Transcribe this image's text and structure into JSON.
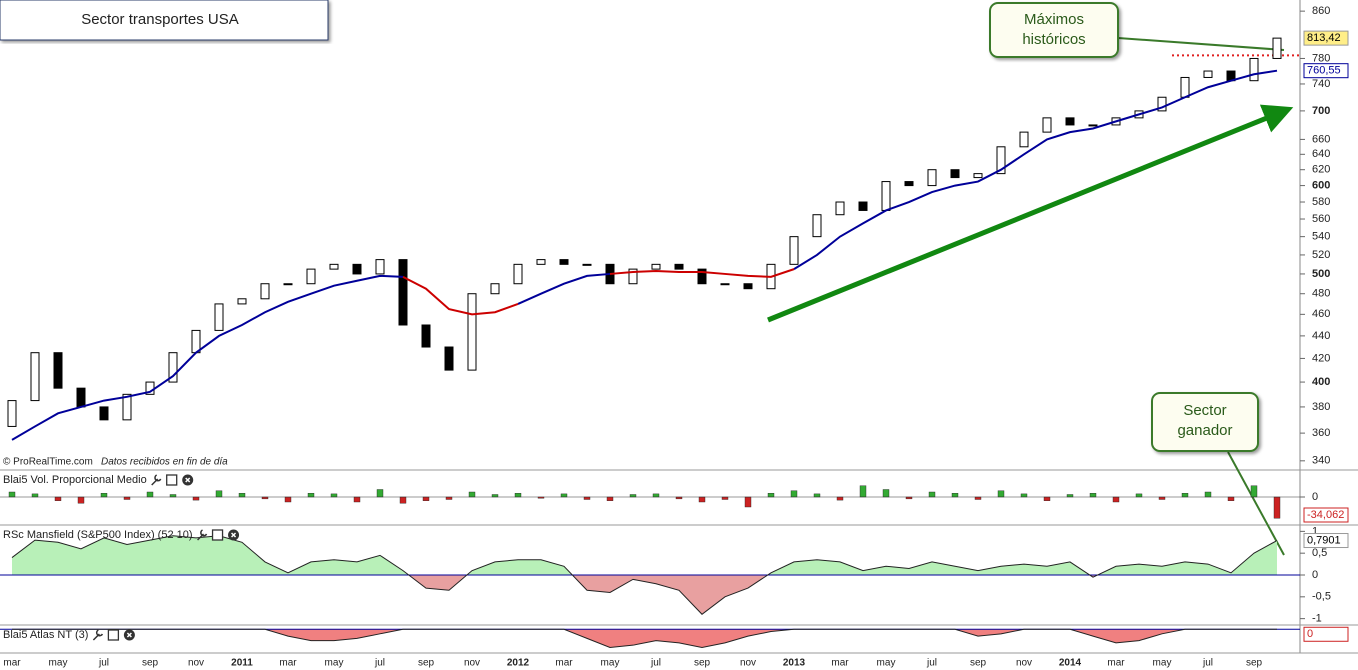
{
  "chart_data": [
    {
      "type": "candlestick",
      "title": "Sector transportes USA",
      "source": "© ProRealTime.com",
      "source_note": "Datos recibidos en fin de día",
      "categories": [
        "mar",
        null,
        "may",
        null,
        "jul",
        null,
        "sep",
        null,
        "nov",
        null,
        "2011",
        null,
        "mar",
        null,
        "may",
        null,
        "jul",
        null,
        "sep",
        null,
        "nov",
        null,
        "2012",
        null,
        "mar",
        null,
        "may",
        null,
        "jul",
        null,
        "sep",
        null,
        "nov",
        null,
        "2013",
        null,
        "mar",
        null,
        "may",
        null,
        "jul",
        null,
        "sep",
        null,
        "nov",
        null,
        "2014",
        null,
        "mar",
        null,
        "may",
        null,
        "jul",
        null,
        "sep",
        null
      ],
      "open": [
        365,
        385,
        425,
        395,
        380,
        370,
        390,
        400,
        425,
        445,
        470,
        475,
        490,
        490,
        505,
        510,
        500,
        515,
        450,
        430,
        410,
        480,
        490,
        510,
        515,
        510,
        510,
        490,
        505,
        510,
        505,
        490,
        490,
        485,
        510,
        540,
        565,
        580,
        570,
        605,
        600,
        620,
        610,
        615,
        650,
        670,
        690,
        680,
        680,
        690,
        700,
        720,
        750,
        760,
        745,
        780
      ],
      "close": [
        385,
        425,
        395,
        380,
        370,
        390,
        400,
        425,
        445,
        470,
        475,
        490,
        490,
        505,
        510,
        500,
        515,
        450,
        430,
        410,
        480,
        490,
        510,
        515,
        510,
        510,
        490,
        505,
        510,
        505,
        490,
        490,
        485,
        510,
        540,
        565,
        580,
        570,
        605,
        600,
        620,
        610,
        615,
        650,
        670,
        690,
        680,
        680,
        690,
        700,
        720,
        750,
        760,
        745,
        780,
        813.42
      ],
      "up_color": "#ffffff",
      "down_color": "#000000",
      "moving_average": [
        {
          "color": "#000099",
          "values": [
            355,
            365,
            375,
            380,
            385,
            388,
            392,
            405,
            425,
            440,
            450,
            462,
            472,
            480,
            488,
            493,
            498,
            497,
            null,
            null,
            null,
            null,
            470,
            480,
            490,
            498,
            500,
            null,
            null,
            null,
            null,
            null,
            null,
            null,
            505,
            520,
            540,
            555,
            570,
            580,
            592,
            600,
            605,
            620,
            640,
            660,
            670,
            675,
            685,
            695,
            705,
            720,
            735,
            745,
            755,
            760.55
          ]
        },
        {
          "color": "#cc0000",
          "values": [
            null,
            null,
            null,
            null,
            null,
            null,
            null,
            null,
            null,
            null,
            null,
            null,
            null,
            null,
            null,
            null,
            null,
            497,
            485,
            465,
            460,
            462,
            470,
            null,
            null,
            null,
            500,
            502,
            503,
            502,
            502,
            500,
            498,
            497,
            505,
            null,
            null,
            null,
            null,
            null,
            null,
            null,
            null,
            null,
            null,
            null,
            null,
            null,
            null,
            null,
            null,
            null,
            null,
            null,
            null,
            null
          ]
        }
      ],
      "last_price": {
        "value": 813.42,
        "label": "813,42"
      },
      "last_average": {
        "value": 760.55,
        "label": "760,55"
      },
      "max_level": 785,
      "annotations": [
        [
          "Máximos",
          "históricos"
        ],
        [
          "Sector",
          "ganador"
        ]
      ],
      "log_scale": true,
      "ylim": [
        335,
        880
      ],
      "yticks": [
        860,
        780,
        740,
        700,
        660,
        640,
        620,
        600,
        580,
        560,
        540,
        520,
        500,
        480,
        460,
        440,
        420,
        400,
        380,
        360,
        340
      ]
    },
    {
      "type": "bar",
      "title": "Blai5 Vol. Proporcional Medio",
      "values": [
        8,
        5,
        -6,
        -10,
        6,
        -4,
        8,
        4,
        -5,
        10,
        6,
        -3,
        -8,
        6,
        5,
        -8,
        12,
        -10,
        -6,
        -4,
        8,
        4,
        6,
        -2,
        5,
        -4,
        -6,
        4,
        5,
        -3,
        -8,
        -4,
        -16,
        6,
        10,
        5,
        -5,
        18,
        12,
        -3,
        8,
        6,
        -4,
        10,
        5,
        -6,
        4,
        6,
        -8,
        5,
        -4,
        6,
        8,
        -6,
        18,
        -34.062
      ],
      "positive_color": "#33aa33",
      "negative_color": "#cc2222",
      "last_value": {
        "value": -34.062,
        "label": "-34,062"
      },
      "ylim": [
        -40,
        40
      ],
      "yticks": [
        0
      ]
    },
    {
      "type": "area",
      "title": "RSc Mansfield (S&P500 Index) (52 10)",
      "values": [
        0.4,
        0.8,
        0.75,
        0.6,
        0.85,
        0.7,
        0.8,
        0.9,
        0.85,
        0.9,
        0.75,
        0.3,
        0.05,
        0.3,
        0.35,
        0.3,
        0.45,
        0.1,
        -0.3,
        -0.35,
        0.1,
        0.3,
        0.35,
        0.35,
        0.2,
        -0.35,
        -0.4,
        -0.1,
        -0.2,
        -0.35,
        -0.9,
        -0.5,
        -0.3,
        0.05,
        0.3,
        0.35,
        0.3,
        0.1,
        0.2,
        0.15,
        0.3,
        0.2,
        0.1,
        0.2,
        0.25,
        0.2,
        0.3,
        -0.05,
        0.2,
        0.25,
        0.2,
        0.3,
        0.25,
        0.05,
        0.5,
        0.7901
      ],
      "positive_color": "#b8f0b8",
      "negative_color": "#e8a0a0",
      "last_value": {
        "value": 0.7901,
        "label": "0,7901"
      },
      "ylim": [
        -1.1,
        1.1
      ],
      "yticks": [
        1,
        {
          "value": 0.5,
          "label": "0,5"
        },
        0,
        {
          "value": -0.5,
          "label": "-0,5"
        },
        -1
      ]
    },
    {
      "type": "area",
      "title": "Blai5 Atlas NT (3)",
      "values": [
        0,
        0,
        0,
        0,
        0,
        0,
        0,
        0,
        0,
        0,
        0,
        0,
        -0.3,
        -0.5,
        -0.5,
        -0.4,
        -0.2,
        0,
        0,
        0,
        0,
        0,
        0,
        0,
        0,
        -0.4,
        -0.8,
        -0.7,
        -0.5,
        -0.6,
        -0.8,
        -0.6,
        -0.3,
        -0.1,
        0,
        0,
        0,
        0,
        0,
        0,
        0,
        0,
        -0.3,
        -0.2,
        0,
        0,
        0,
        -0.3,
        -0.6,
        -0.5,
        -0.2,
        0,
        0,
        0,
        0,
        0
      ],
      "positive_color": "#b8f0b8",
      "negative_color": "#f08080",
      "last_value": {
        "value": 0,
        "label": "0"
      },
      "ylim": [
        -1,
        0.1
      ],
      "yticks": []
    }
  ]
}
